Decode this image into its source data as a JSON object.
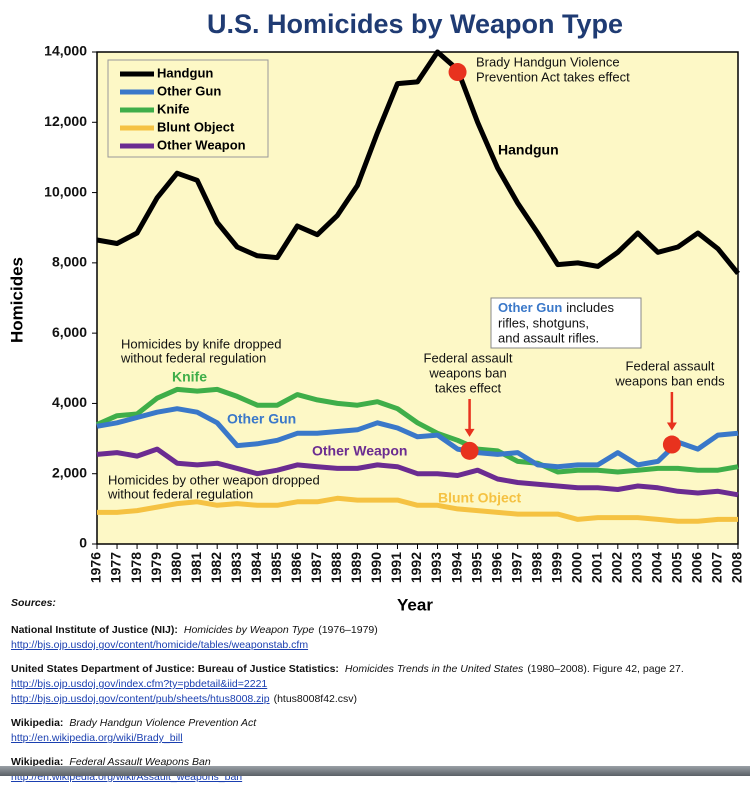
{
  "chart_data": {
    "type": "line",
    "title": "U.S. Homicides by Weapon Type",
    "x_label": "Year",
    "y_label": "Homicides",
    "x": [
      1976,
      1977,
      1978,
      1979,
      1980,
      1981,
      1982,
      1983,
      1984,
      1985,
      1986,
      1987,
      1988,
      1989,
      1990,
      1991,
      1992,
      1993,
      1994,
      1995,
      1996,
      1997,
      1998,
      1999,
      2000,
      2001,
      2002,
      2003,
      2004,
      2005,
      2006,
      2007,
      2008
    ],
    "xlim": [
      1976,
      2008
    ],
    "ylim": [
      0,
      14000
    ],
    "yticks": [
      0,
      {
        "value": 2000,
        "label": "2,000"
      },
      {
        "value": 4000,
        "label": "4,000"
      },
      {
        "value": 6000,
        "label": "6,000"
      },
      {
        "value": 8000,
        "label": "8,000"
      },
      {
        "value": 10000,
        "label": "10,000"
      },
      {
        "value": 12000,
        "label": "12,000"
      },
      {
        "value": 14000,
        "label": "14,000"
      }
    ],
    "grid": false,
    "legend": "upper left",
    "series": [
      {
        "name": "Handgun",
        "color": "#000000",
        "values": [
          8650,
          8550,
          8850,
          9850,
          10550,
          10350,
          9150,
          8450,
          8200,
          8150,
          9050,
          8800,
          9350,
          10200,
          11700,
          13100,
          13150,
          14000,
          13500,
          12000,
          10700,
          9700,
          8850,
          7950,
          8000,
          7900,
          8300,
          8850,
          8300,
          8450,
          8850,
          8400,
          7700
        ]
      },
      {
        "name": "Other Gun",
        "color": "#3a78c9",
        "values": [
          3350,
          3450,
          3600,
          3750,
          3850,
          3750,
          3450,
          2800,
          2850,
          2950,
          3150,
          3150,
          3200,
          3250,
          3450,
          3300,
          3050,
          3100,
          2700,
          2600,
          2550,
          2600,
          2250,
          2200,
          2250,
          2250,
          2600,
          2250,
          2350,
          2900,
          2700,
          3100,
          3150
        ]
      },
      {
        "name": "Knife",
        "color": "#3fae49",
        "values": [
          3400,
          3650,
          3700,
          4150,
          4400,
          4350,
          4400,
          4200,
          3950,
          3950,
          4250,
          4100,
          4000,
          3950,
          4050,
          3850,
          3450,
          3150,
          2950,
          2700,
          2650,
          2350,
          2300,
          2050,
          2100,
          2100,
          2050,
          2100,
          2150,
          2150,
          2100,
          2100,
          2200
        ]
      },
      {
        "name": "Blunt Object",
        "color": "#f5c242",
        "values": [
          900,
          900,
          950,
          1050,
          1150,
          1200,
          1100,
          1150,
          1100,
          1100,
          1200,
          1200,
          1300,
          1250,
          1250,
          1250,
          1100,
          1100,
          1000,
          950,
          900,
          850,
          850,
          850,
          700,
          750,
          750,
          750,
          700,
          650,
          650,
          700,
          700
        ]
      },
      {
        "name": "Other Weapon",
        "color": "#6b2c91",
        "values": [
          2550,
          2600,
          2500,
          2700,
          2300,
          2250,
          2300,
          2150,
          2000,
          2100,
          2250,
          2200,
          2150,
          2150,
          2250,
          2200,
          2000,
          2000,
          1950,
          2100,
          1850,
          1750,
          1700,
          1650,
          1600,
          1600,
          1550,
          1650,
          1600,
          1500,
          1450,
          1500,
          1400
        ]
      }
    ],
    "annotations": [
      {
        "text": [
          "Brady Handgun Violence",
          "Prevention Act takes effect"
        ],
        "x": 1994,
        "y": 13430
      },
      {
        "text": [
          "Federal assault",
          "weapons ban",
          "takes effect"
        ],
        "x": 1994.6,
        "y": 2650
      },
      {
        "text": [
          "Federal assault",
          "weapons ban ends"
        ],
        "x": 2004.7,
        "y": 2830
      }
    ],
    "notes": [
      {
        "text": [
          "Homicides by knife dropped",
          "without federal regulation"
        ]
      },
      {
        "text": [
          "Homicides by other weapon dropped",
          "without federal regulation"
        ]
      }
    ],
    "other_gun_note": {
      "highlight": "Other Gun",
      "text": [
        "includes",
        "rifles, shotguns,",
        "and assault rifles."
      ]
    }
  },
  "sources": {
    "title": "Sources:",
    "entries": [
      {
        "org": "National Institute of Justice (NIJ):",
        "work": "Homicides by Weapon Type",
        "detail": "(1976–1979)",
        "links": [
          {
            "url": "http://bjs.ojp.usdoj.gov/content/homicide/tables/weaponstab.cfm"
          }
        ]
      },
      {
        "org": "United States Department of Justice: Bureau of Justice Statistics:",
        "work": "Homicides Trends in the United States",
        "detail": "(1980–2008). Figure 42, page 27.",
        "links": [
          {
            "url": "http://bjs.ojp.usdoj.gov/index.cfm?ty=pbdetail&iid=2221"
          },
          {
            "url": "http://bjs.ojp.usdoj.gov/content/pub/sheets/htus8008.zip",
            "suffix": "(htus8008f42.csv)"
          }
        ]
      },
      {
        "org": "Wikipedia:",
        "work": "Brady Handgun Violence Prevention Act",
        "links": [
          {
            "url": "http://en.wikipedia.org/wiki/Brady_bill"
          }
        ]
      },
      {
        "org": "Wikipedia:",
        "work": "Federal Assault Weapons Ban",
        "links": [
          {
            "url": "http://en.wikipedia.org/wiki/Assault_weapons_ban"
          }
        ]
      }
    ]
  }
}
